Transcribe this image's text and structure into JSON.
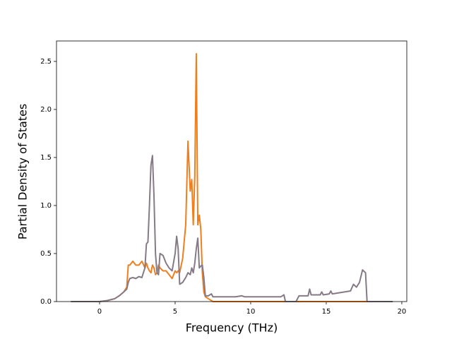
{
  "chart_data": {
    "type": "line",
    "x_label": "Frequency (THz)",
    "y_label": "Partial Density of States",
    "x": [
      -1.9,
      0,
      0.5,
      1,
      1.3,
      1.6,
      1.8,
      1.9,
      2.0,
      2.2,
      2.4,
      2.6,
      2.8,
      3.0,
      3.1,
      3.2,
      3.3,
      3.4,
      3.5,
      3.6,
      3.7,
      3.8,
      3.9,
      4.0,
      4.2,
      4.4,
      4.6,
      4.8,
      5.0,
      5.1,
      5.2,
      5.3,
      5.5,
      5.7,
      5.85,
      6.0,
      6.1,
      6.2,
      6.3,
      6.4,
      6.5,
      6.6,
      6.7,
      6.8,
      6.9,
      7.0,
      7.2,
      7.4,
      7.5,
      9,
      9.4,
      9.6,
      11,
      12,
      12.2,
      12.3,
      13.0,
      13.2,
      13.8,
      13.9,
      14.0,
      14.6,
      14.7,
      14.8,
      15.2,
      15.3,
      15.4,
      16.2,
      16.6,
      16.8,
      17.0,
      17.2,
      17.4,
      17.6,
      17.7,
      19.4
    ],
    "series": [
      {
        "color": "#ef7f1e",
        "values": [
          0,
          0,
          0.01,
          0.03,
          0.06,
          0.1,
          0.15,
          0.38,
          0.38,
          0.42,
          0.38,
          0.38,
          0.42,
          0.35,
          0.4,
          0.35,
          0.32,
          0.3,
          0.38,
          0.35,
          0.28,
          0.3,
          0.38,
          0.35,
          0.32,
          0.32,
          0.28,
          0.24,
          0.32,
          0.3,
          0.32,
          0.3,
          0.45,
          0.8,
          1.67,
          1.15,
          1.27,
          0.8,
          1.3,
          2.58,
          0.8,
          0.9,
          0.75,
          0.3,
          0.1,
          0.05,
          0.03,
          0.01,
          0,
          0,
          0,
          0,
          0,
          0,
          0,
          0,
          0,
          0,
          0,
          0,
          0,
          0,
          0,
          0,
          0,
          0,
          0,
          0,
          0,
          0,
          0,
          0,
          0,
          0,
          0,
          0
        ]
      },
      {
        "color": "#857a86",
        "values": [
          0,
          0,
          0.01,
          0.03,
          0.06,
          0.1,
          0.13,
          0.2,
          0.24,
          0.25,
          0.24,
          0.26,
          0.25,
          0.35,
          0.6,
          0.62,
          1.0,
          1.42,
          1.52,
          1.1,
          0.5,
          0.3,
          0.28,
          0.5,
          0.48,
          0.4,
          0.35,
          0.32,
          0.5,
          0.68,
          0.55,
          0.18,
          0.2,
          0.25,
          0.3,
          0.28,
          0.35,
          0.3,
          0.4,
          0.55,
          0.66,
          0.35,
          0.37,
          0.38,
          0.25,
          0.06,
          0.06,
          0.08,
          0.05,
          0.05,
          0.06,
          0.05,
          0.05,
          0.05,
          0.07,
          0,
          0,
          0.06,
          0.06,
          0.13,
          0.07,
          0.07,
          0.1,
          0.07,
          0.08,
          0.11,
          0.08,
          0.1,
          0.11,
          0.18,
          0.15,
          0.2,
          0.33,
          0.3,
          0,
          0
        ]
      }
    ],
    "xlim": [
      -2.85,
      20.33
    ],
    "ylim": [
      0,
      2.713
    ],
    "xticks": [
      0,
      5,
      10,
      15,
      20
    ],
    "yticks": [
      {
        "value": 0,
        "label": "0.0"
      },
      {
        "value": 0.5,
        "label": "0.5"
      },
      {
        "value": 1,
        "label": "1.0"
      },
      {
        "value": 1.5,
        "label": "1.5"
      },
      {
        "value": 2,
        "label": "2.0"
      },
      {
        "value": 2.5,
        "label": "2.5"
      }
    ]
  }
}
